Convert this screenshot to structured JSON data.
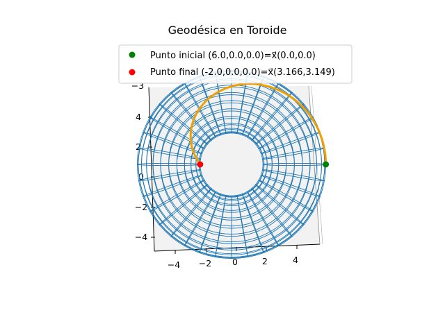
{
  "colors": {
    "wire": "#1f77b4",
    "path": "#f0a000",
    "start": "#008000",
    "end": "#ff0000",
    "pane": "#f2f2f2",
    "pane_edge": "#b0b0b0"
  },
  "chart_data": {
    "type": "line",
    "title": "Geodésica en Toroide",
    "surface": "torus",
    "R": 4,
    "r": 2,
    "x_ticks": [
      "−4",
      "−2",
      "0",
      "2",
      "4"
    ],
    "y_ticks": [
      "4",
      "2",
      "0",
      "−2",
      "−4"
    ],
    "z_tick_top": "−3",
    "legend": {
      "placement": "top-center",
      "entries": [
        {
          "label": "Punto inicial (6.0,0.0,0.0)=x⃗(0.0,0.0)",
          "color": "#008000",
          "x": 6.0,
          "y": 0.0,
          "z": 0.0
        },
        {
          "label": "Punto final (-2.0,0.0,0.0)=x⃗(3.166,3.149)",
          "color": "#ff0000",
          "x": -2.0,
          "y": 0.0,
          "z": 0.0
        }
      ]
    },
    "geodesic": {
      "name": "",
      "color": "#f0a000",
      "u_range": [
        0.0,
        3.166
      ],
      "v_range": [
        0.0,
        3.149
      ]
    },
    "xlim": [
      -6,
      6
    ],
    "ylim": [
      -6,
      6
    ]
  }
}
